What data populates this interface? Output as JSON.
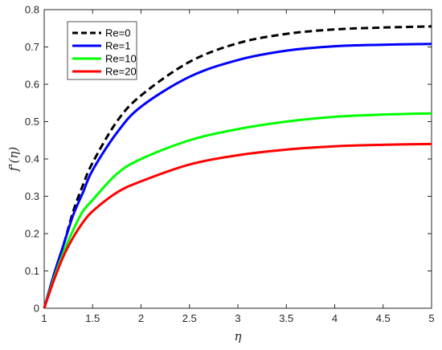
{
  "chart_data": {
    "type": "line",
    "xlabel": "η",
    "ylabel": "f'(η)",
    "xlim": [
      1,
      5
    ],
    "ylim": [
      0,
      0.8
    ],
    "xticks": [
      "1",
      "1.5",
      "2",
      "2.5",
      "3",
      "3.5",
      "4",
      "4.5",
      "5"
    ],
    "yticks": [
      "0",
      "0.1",
      "0.2",
      "0.3",
      "0.4",
      "0.5",
      "0.6",
      "0.7",
      "0.8"
    ],
    "grid": false,
    "legend_position": "top-left",
    "x": [
      1.0,
      1.1,
      1.2,
      1.3,
      1.4,
      1.5,
      1.75,
      2.0,
      2.5,
      3.0,
      3.5,
      4.0,
      4.5,
      5.0
    ],
    "series": [
      {
        "name": "Re=0",
        "color": "#000000",
        "dash": "dashed",
        "values": [
          0.0,
          0.09,
          0.17,
          0.26,
          0.33,
          0.39,
          0.5,
          0.57,
          0.66,
          0.71,
          0.735,
          0.747,
          0.752,
          0.755
        ]
      },
      {
        "name": "Re=1",
        "color": "#0000ff",
        "dash": "solid",
        "values": [
          0.0,
          0.09,
          0.17,
          0.25,
          0.31,
          0.37,
          0.47,
          0.54,
          0.62,
          0.665,
          0.69,
          0.702,
          0.706,
          0.708
        ]
      },
      {
        "name": "Re=10",
        "color": "#00ff00",
        "dash": "solid",
        "values": [
          0.0,
          0.08,
          0.15,
          0.21,
          0.26,
          0.29,
          0.36,
          0.4,
          0.45,
          0.48,
          0.5,
          0.513,
          0.519,
          0.522
        ]
      },
      {
        "name": "Re=20",
        "color": "#ff0000",
        "dash": "solid",
        "values": [
          0.0,
          0.075,
          0.14,
          0.19,
          0.23,
          0.26,
          0.31,
          0.34,
          0.385,
          0.41,
          0.425,
          0.434,
          0.438,
          0.44
        ]
      }
    ]
  }
}
